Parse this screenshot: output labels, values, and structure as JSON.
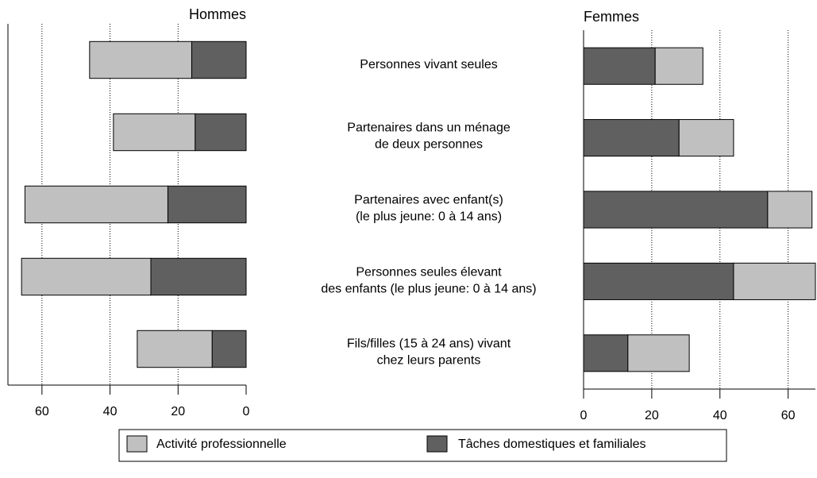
{
  "chart_data": {
    "type": "bar",
    "categories": [
      [
        "Personnes vivant seules"
      ],
      [
        "Partenaires dans un ménage",
        "de deux personnes"
      ],
      [
        "Partenaires avec enfant(s)",
        "(le plus jeune: 0 à 14 ans)"
      ],
      [
        "Personnes seules élevant",
        "des enfants  (le plus jeune: 0 à 14 ans)"
      ],
      [
        "Fils/filles (15 à 24 ans) vivant",
        "chez leurs parents"
      ]
    ],
    "series": [
      {
        "name": "Activité professionnelle",
        "color": "#c0c0c0"
      },
      {
        "name": "Tâches domestiques et familiales",
        "color": "#606060"
      }
    ],
    "grid": true,
    "panels": [
      {
        "title": "Hommes",
        "xlim": [
          70,
          0
        ],
        "xticks": [
          60,
          40,
          20,
          0
        ],
        "series": [
          {
            "values": [
              30,
              24,
              42,
              38,
              22
            ]
          },
          {
            "values": [
              16,
              15,
              23,
              28,
              10
            ]
          }
        ]
      },
      {
        "title": "Femmes",
        "xlim": [
          0,
          68
        ],
        "xticks": [
          0,
          20,
          40,
          60
        ],
        "series": [
          {
            "values": [
              14,
              16,
              13,
              24,
              18
            ]
          },
          {
            "values": [
              21,
              28,
              54,
              44,
              13
            ]
          }
        ]
      }
    ]
  }
}
